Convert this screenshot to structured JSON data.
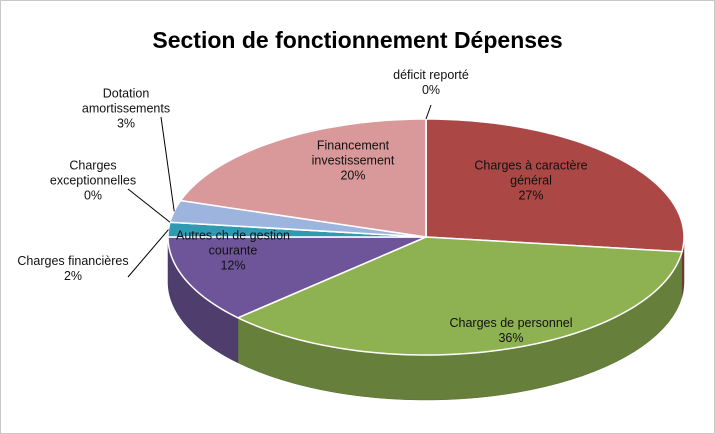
{
  "chart_data": {
    "type": "pie",
    "title": "Section de fonctionnement Dépenses",
    "categories": [
      "Charges à caractère général",
      "Charges de personnel",
      "Autres ch de gestion courante",
      "Charges financières",
      "Charges exceptionnelles",
      "Dotation amortissements",
      "Financement investissement",
      "déficit reporté"
    ],
    "values": [
      27,
      36,
      12,
      2,
      0,
      3,
      20,
      0
    ],
    "value_labels": [
      "27%",
      "36%",
      "12%",
      "2%",
      "0%",
      "3%",
      "20%",
      "0%"
    ],
    "colors": [
      "#ab4845",
      "#8eb252",
      "#6e5599",
      "#2f9bb3",
      "#4a7ec0",
      "#9db5de",
      "#d9999a",
      "#ffffff"
    ]
  }
}
